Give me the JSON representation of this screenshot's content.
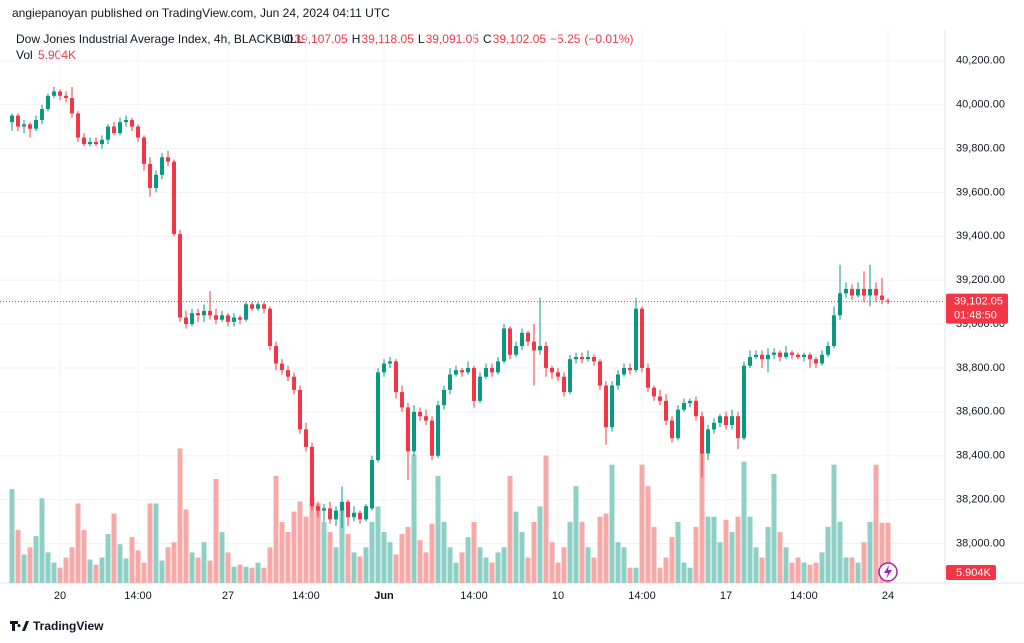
{
  "chart_data": {
    "type": "candlestick",
    "header": "angiepanoyan published on TradingView.com, Jun 24, 2024 04:11 UTC",
    "title": "Dow Jones Industrial Average Index, 4h, BLACKBULL",
    "legend_ohlc": [
      {
        "prefix": "O",
        "value": 39107.05,
        "label": "39,107.05"
      },
      {
        "prefix": "H",
        "value": 39118.05,
        "label": "39,118.05"
      },
      {
        "prefix": "L",
        "value": 39091.05,
        "label": "39,091.05"
      },
      {
        "prefix": "C",
        "value": 39102.05,
        "label": "39,102.05"
      }
    ],
    "change": {
      "value": -5.25,
      "label": "−5.25"
    },
    "change_pct": {
      "value": -0.01,
      "label": "(−0.01%)"
    },
    "volume_title": "Vol",
    "volume_last": {
      "value": 5.904,
      "label": "5.904K"
    },
    "last_price": {
      "value": 39102.05,
      "label": "39,102.05"
    },
    "countdown": "01:48:50",
    "brand": "TradingView",
    "up_color": "#089981",
    "down_color": "#f23645",
    "grid": true,
    "ylim": [
      37820,
      40340
    ],
    "yticks": [
      {
        "value": 38000,
        "label": "38,000.00"
      },
      {
        "value": 38200,
        "label": "38,200.00"
      },
      {
        "value": 38400,
        "label": "38,400.00"
      },
      {
        "value": 38600,
        "label": "38,600.00"
      },
      {
        "value": 38800,
        "label": "38,800.00"
      },
      {
        "value": 39000,
        "label": "39,000.00"
      },
      {
        "value": 39200,
        "label": "39,200.00"
      },
      {
        "value": 39400,
        "label": "39,400.00"
      },
      {
        "value": 39600,
        "label": "39,600.00"
      },
      {
        "value": 39800,
        "label": "39,800.00"
      },
      {
        "value": 40000,
        "label": "40,000.00"
      },
      {
        "value": 40200,
        "label": "40,200.00"
      }
    ],
    "xticks": [
      {
        "index": 8,
        "label": "20"
      },
      {
        "index": 21,
        "label": "14:00"
      },
      {
        "index": 36,
        "label": "27"
      },
      {
        "index": 49,
        "label": "14:00"
      },
      {
        "index": 62,
        "label": "Jun"
      },
      {
        "index": 77,
        "label": "14:00"
      },
      {
        "index": 91,
        "label": "10"
      },
      {
        "index": 105,
        "label": "14:00"
      },
      {
        "index": 119,
        "label": "17"
      },
      {
        "index": 132,
        "label": "14:00"
      },
      {
        "index": 146,
        "label": "24"
      }
    ],
    "open": [
      39920,
      39950,
      39900,
      39910,
      39890,
      39930,
      39980,
      40040,
      40060,
      40040,
      40030,
      39960,
      39850,
      39820,
      39830,
      39820,
      39840,
      39900,
      39870,
      39920,
      39930,
      39900,
      39850,
      39730,
      39620,
      39680,
      39760,
      39740,
      39410,
      39030,
      39000,
      39050,
      39040,
      39060,
      39040,
      39020,
      39040,
      39010,
      39030,
      39020,
      39090,
      39070,
      39090,
      39070,
      38900,
      38820,
      38790,
      38760,
      38700,
      38520,
      38440,
      38170,
      38150,
      38160,
      38110,
      38150,
      38190,
      38120,
      38140,
      38110,
      38160,
      38380,
      38780,
      38820,
      38830,
      38690,
      38620,
      38420,
      38600,
      38580,
      38560,
      38400,
      38630,
      38700,
      38770,
      38790,
      38780,
      38800,
      38650,
      38760,
      38800,
      38780,
      38830,
      38980,
      38860,
      38900,
      38960,
      38920,
      38880,
      38900,
      38800,
      38780,
      38760,
      38690,
      38840,
      38850,
      38840,
      38850,
      38830,
      38720,
      38530,
      38720,
      38770,
      38800,
      38790,
      39070,
      38800,
      38710,
      38670,
      38650,
      38560,
      38480,
      38610,
      38640,
      38650,
      38580,
      38410,
      38520,
      38550,
      38580,
      38540,
      38580,
      38480,
      38810,
      38850,
      38860,
      38840,
      38860,
      38870,
      38850,
      38870,
      38860,
      38850,
      38860,
      38840,
      38820,
      38860,
      38900,
      39040,
      39140,
      39160,
      39130,
      39160,
      39130,
      39160,
      39130,
      39107.05
    ],
    "high": [
      39960,
      39960,
      39930,
      39920,
      39950,
      40000,
      40050,
      40080,
      40070,
      40060,
      40080,
      39970,
      39870,
      39850,
      39850,
      39860,
      39910,
      39920,
      39940,
      39950,
      39940,
      39910,
      39860,
      39760,
      39700,
      39780,
      39790,
      39750,
      39430,
      39060,
      39070,
      39070,
      39090,
      39150,
      39070,
      39060,
      39050,
      39050,
      39040,
      39100,
      39100,
      39100,
      39100,
      39080,
      38920,
      38840,
      38810,
      38780,
      38720,
      38550,
      38460,
      38190,
      38180,
      38190,
      38170,
      38260,
      38200,
      38170,
      38150,
      38180,
      38400,
      38800,
      38840,
      38850,
      38840,
      38720,
      38640,
      38630,
      38620,
      38610,
      38580,
      38650,
      38720,
      38800,
      38810,
      38800,
      38830,
      38810,
      38780,
      38820,
      38820,
      38850,
      39000,
      38990,
      38920,
      38980,
      38970,
      39000,
      39120,
      38920,
      38810,
      38800,
      38780,
      38860,
      38870,
      38870,
      38880,
      38860,
      38840,
      38740,
      38740,
      38790,
      38820,
      38820,
      39120,
      39080,
      38820,
      38720,
      38700,
      38680,
      38580,
      38630,
      38660,
      38660,
      38670,
      38600,
      38540,
      38570,
      38590,
      38600,
      38610,
      38600,
      38830,
      38880,
      38880,
      38880,
      38890,
      38890,
      38880,
      38900,
      38880,
      38870,
      38870,
      38870,
      38850,
      38880,
      38920,
      39080,
      39270,
      39190,
      39180,
      39190,
      39240,
      39270,
      39190,
      39210,
      39118.05
    ],
    "low": [
      39880,
      39880,
      39870,
      39850,
      39880,
      39910,
      39970,
      40030,
      40020,
      40010,
      39940,
      39830,
      39810,
      39810,
      39810,
      39800,
      39820,
      39860,
      39860,
      39900,
      39880,
      39830,
      39700,
      39580,
      39600,
      39660,
      39720,
      39400,
      39010,
      38980,
      38990,
      39010,
      39010,
      39020,
      39000,
      39010,
      38990,
      38990,
      39000,
      39010,
      39060,
      39060,
      39050,
      38880,
      38790,
      38770,
      38740,
      38680,
      38500,
      38420,
      38150,
      38120,
      38100,
      38090,
      38080,
      38070,
      38080,
      38100,
      38090,
      38100,
      38150,
      38370,
      38760,
      38800,
      38660,
      38600,
      38290,
      38400,
      38560,
      38540,
      38380,
      38390,
      38610,
      38680,
      38760,
      38760,
      38770,
      38620,
      38640,
      38750,
      38760,
      38770,
      38820,
      38840,
      38850,
      38880,
      38900,
      38720,
      38860,
      38760,
      38750,
      38740,
      38670,
      38680,
      38820,
      38820,
      38830,
      38810,
      38700,
      38450,
      38510,
      38700,
      38760,
      38770,
      38780,
      38780,
      38690,
      38650,
      38630,
      38540,
      38460,
      38470,
      38600,
      38620,
      38560,
      38300,
      38380,
      38500,
      38530,
      38520,
      38520,
      38430,
      38470,
      38800,
      38840,
      38800,
      38780,
      38840,
      38830,
      38840,
      38840,
      38840,
      38830,
      38800,
      38800,
      38810,
      38850,
      38890,
      39020,
      39120,
      39110,
      39120,
      39100,
      39080,
      39100,
      39090,
      39091.05
    ],
    "close": [
      39950,
      39900,
      39910,
      39890,
      39930,
      39980,
      40040,
      40060,
      40040,
      40030,
      39960,
      39850,
      39820,
      39830,
      39820,
      39840,
      39900,
      39870,
      39920,
      39930,
      39900,
      39850,
      39730,
      39620,
      39680,
      39760,
      39740,
      39410,
      39030,
      39000,
      39050,
      39040,
      39060,
      39040,
      39020,
      39040,
      39010,
      39030,
      39020,
      39090,
      39070,
      39090,
      39070,
      38900,
      38820,
      38790,
      38760,
      38700,
      38520,
      38440,
      38170,
      38150,
      38160,
      38110,
      38150,
      38190,
      38120,
      38140,
      38110,
      38170,
      38380,
      38780,
      38820,
      38830,
      38690,
      38620,
      38420,
      38600,
      38580,
      38560,
      38400,
      38630,
      38700,
      38770,
      38790,
      38780,
      38800,
      38650,
      38760,
      38800,
      38780,
      38830,
      38980,
      38860,
      38900,
      38960,
      38920,
      38880,
      38900,
      38800,
      38780,
      38760,
      38690,
      38840,
      38850,
      38840,
      38850,
      38830,
      38720,
      38530,
      38720,
      38770,
      38800,
      38790,
      39070,
      38800,
      38710,
      38670,
      38650,
      38560,
      38480,
      38610,
      38640,
      38650,
      38580,
      38410,
      38520,
      38550,
      38580,
      38540,
      38580,
      38480,
      38810,
      38850,
      38860,
      38840,
      38860,
      38870,
      38850,
      38870,
      38860,
      38850,
      38860,
      38840,
      38820,
      38860,
      38900,
      39040,
      39140,
      39160,
      39130,
      39160,
      39130,
      39160,
      39130,
      39110,
      39102.05
    ],
    "volume": [
      9.2,
      5.2,
      2.8,
      3.5,
      4.6,
      8.3,
      3.0,
      2.0,
      1.5,
      2.5,
      3.5,
      7.8,
      5.2,
      2.3,
      1.8,
      2.5,
      4.8,
      6.8,
      3.8,
      2.4,
      4.5,
      3.2,
      2.0,
      7.8,
      7.8,
      2.2,
      3.5,
      4.0,
      13.2,
      7.2,
      3.0,
      2.5,
      4.0,
      2.2,
      10.2,
      5.0,
      3.0,
      1.6,
      1.8,
      1.6,
      1.5,
      2.0,
      1.5,
      3.5,
      10.5,
      6.0,
      5.0,
      7.0,
      8.0,
      6.5,
      8.5,
      7.8,
      6.0,
      5.0,
      3.5,
      7.2,
      4.8,
      3.0,
      2.6,
      3.5,
      6.0,
      7.5,
      5.0,
      4.0,
      2.8,
      4.8,
      5.5,
      12.6,
      4.2,
      3.0,
      5.8,
      10.5,
      6.0,
      3.5,
      2.0,
      3.0,
      4.5,
      6.0,
      3.5,
      2.5,
      2.0,
      3.0,
      3.5,
      10.5,
      7.0,
      5.0,
      2.5,
      6.0,
      7.5,
      12.5,
      4.0,
      2.0,
      3.5,
      6.0,
      9.5,
      6.0,
      3.5,
      2.5,
      6.5,
      6.8,
      11.6,
      4.0,
      3.5,
      1.5,
      1.5,
      11.6,
      9.5,
      5.5,
      1.5,
      2.5,
      4.5,
      6.0,
      2.0,
      1.5,
      5.5,
      12.9,
      6.5,
      6.5,
      4.0,
      6.2,
      5.0,
      6.5,
      11.9,
      6.5,
      3.5,
      2.5,
      5.5,
      10.7,
      5.0,
      3.5,
      2.0,
      2.5,
      2.0,
      1.8,
      2.0,
      3.0,
      5.5,
      11.6,
      6.0,
      2.5,
      2.5,
      2.0,
      4.0,
      6.0,
      11.6,
      5.9,
      5.904
    ]
  }
}
